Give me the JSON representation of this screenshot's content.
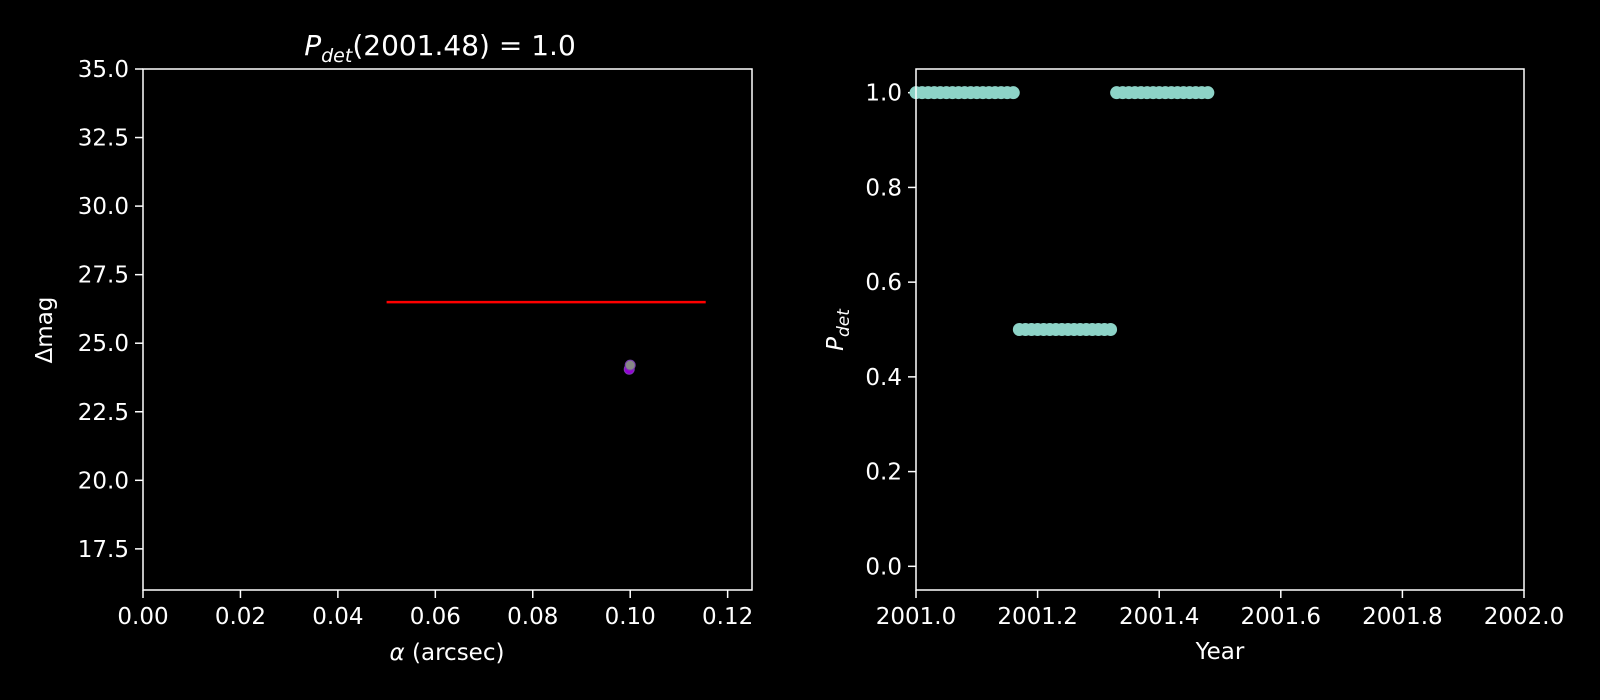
{
  "chart_data": [
    {
      "type": "scatter",
      "title": {
        "main": "P",
        "sub": "det",
        "rest": "(2001.48) = 1.0"
      },
      "xlabel": {
        "symbol": "α",
        "rest": " (arcsec)"
      },
      "ylabel": "Δmag",
      "xlim": [
        0,
        0.125
      ],
      "ylim": [
        16,
        35
      ],
      "xticks": [
        "0.00",
        "0.02",
        "0.04",
        "0.06",
        "0.08",
        "0.10",
        "0.12"
      ],
      "yticks": [
        "17.5",
        "20.0",
        "22.5",
        "25.0",
        "27.5",
        "30.0",
        "32.5",
        "35.0"
      ],
      "line": {
        "x": [
          0.05,
          0.1155
        ],
        "y": [
          26.5,
          26.5
        ],
        "color": "#ff0000"
      },
      "points": [
        {
          "x": 0.0998,
          "y": 24.05,
          "color": "#9400d3"
        },
        {
          "x": 0.1,
          "y": 24.2,
          "color": "#888888"
        }
      ],
      "grid": false
    },
    {
      "type": "scatter",
      "xlabel": "Year",
      "ylabel": {
        "main": "P",
        "sub": "det"
      },
      "xlim": [
        2001.0,
        2002.0
      ],
      "ylim": [
        -0.05,
        1.05
      ],
      "xticks": [
        "2001.0",
        "2001.2",
        "2001.4",
        "2001.6",
        "2001.8",
        "2002.0"
      ],
      "yticks": [
        "0.0",
        "0.2",
        "0.4",
        "0.6",
        "0.8",
        "1.0"
      ],
      "color": "#8dd3c7",
      "series": [
        {
          "x": [
            2001.0,
            2001.01,
            2001.02,
            2001.03,
            2001.04,
            2001.05,
            2001.06,
            2001.07,
            2001.08,
            2001.09,
            2001.1,
            2001.11,
            2001.12,
            2001.13,
            2001.14,
            2001.15,
            2001.16,
            2001.17,
            2001.18,
            2001.19,
            2001.2,
            2001.21,
            2001.22,
            2001.23,
            2001.24,
            2001.25,
            2001.26,
            2001.27,
            2001.28,
            2001.29,
            2001.3,
            2001.31,
            2001.32,
            2001.33,
            2001.34,
            2001.35,
            2001.36,
            2001.37,
            2001.38,
            2001.39,
            2001.4,
            2001.41,
            2001.42,
            2001.43,
            2001.44,
            2001.45,
            2001.46,
            2001.47,
            2001.48
          ],
          "y": [
            1,
            1,
            1,
            1,
            1,
            1,
            1,
            1,
            1,
            1,
            1,
            1,
            1,
            1,
            1,
            1,
            1,
            0.5,
            0.5,
            0.5,
            0.5,
            0.5,
            0.5,
            0.5,
            0.5,
            0.5,
            0.5,
            0.5,
            0.5,
            0.5,
            0.5,
            0.5,
            0.5,
            1,
            1,
            1,
            1,
            1,
            1,
            1,
            1,
            1,
            1,
            1,
            1,
            1,
            1,
            1,
            1
          ]
        }
      ],
      "grid": false
    }
  ]
}
